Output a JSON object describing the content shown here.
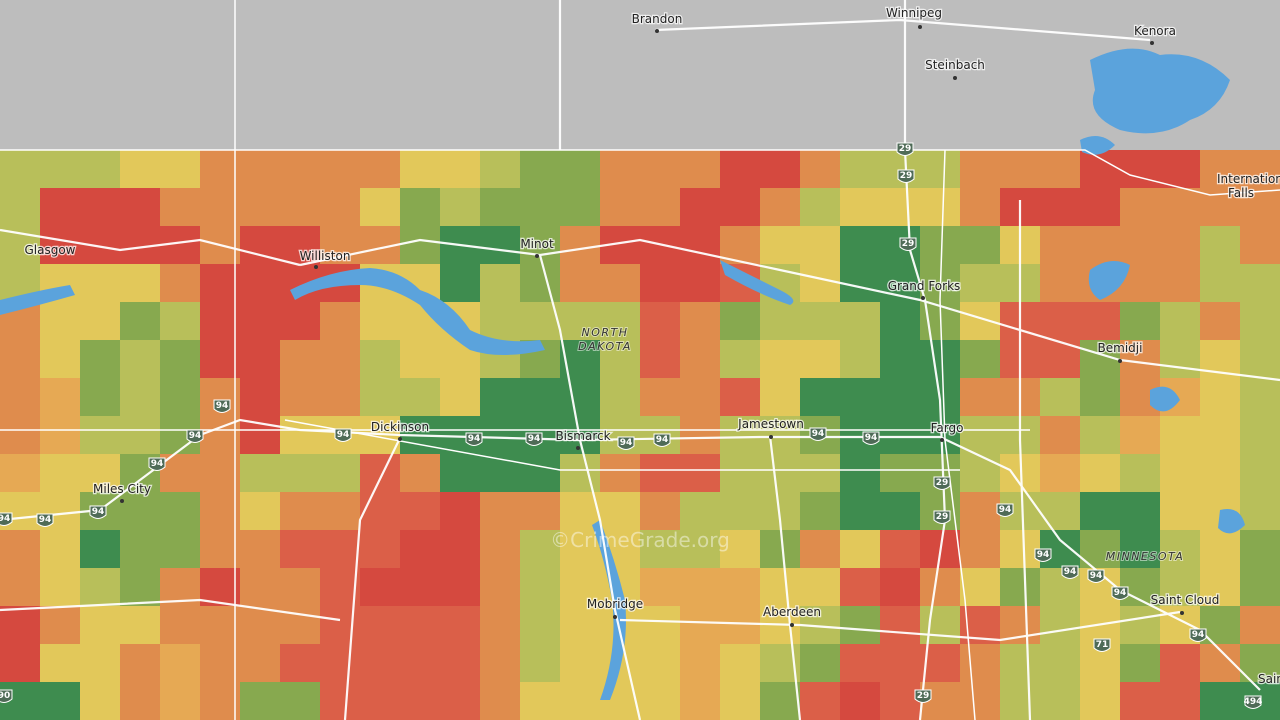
{
  "map": {
    "cities": [
      {
        "name": "Brandon"
      },
      {
        "name": "Winnipeg"
      },
      {
        "name": "Kenora"
      },
      {
        "name": "Steinbach"
      },
      {
        "name": "Internation"
      },
      {
        "name": "Falls"
      },
      {
        "name": "Glasgow"
      },
      {
        "name": "Williston"
      },
      {
        "name": "Minot"
      },
      {
        "name": "Grand Forks"
      },
      {
        "name": "Bemidji"
      },
      {
        "name": "Dickinson"
      },
      {
        "name": "Bismarck"
      },
      {
        "name": "Jamestown"
      },
      {
        "name": "Fargo"
      },
      {
        "name": "Miles City"
      },
      {
        "name": "Mobridge"
      },
      {
        "name": "Aberdeen"
      },
      {
        "name": "Saint Cloud"
      },
      {
        "name": "Sain"
      }
    ],
    "regions": [
      {
        "lines": [
          "NORTH",
          "DAKOTA"
        ]
      },
      {
        "lines": [
          "MINNESOTA"
        ]
      }
    ],
    "shields": [
      29,
      29,
      29,
      29,
      29,
      29,
      94,
      94,
      94,
      94,
      94,
      94,
      94,
      94,
      94,
      94,
      94,
      94,
      94,
      94,
      94,
      94,
      94,
      94,
      94,
      71,
      494,
      90
    ],
    "watermark": "©CrimeGrade.org"
  }
}
